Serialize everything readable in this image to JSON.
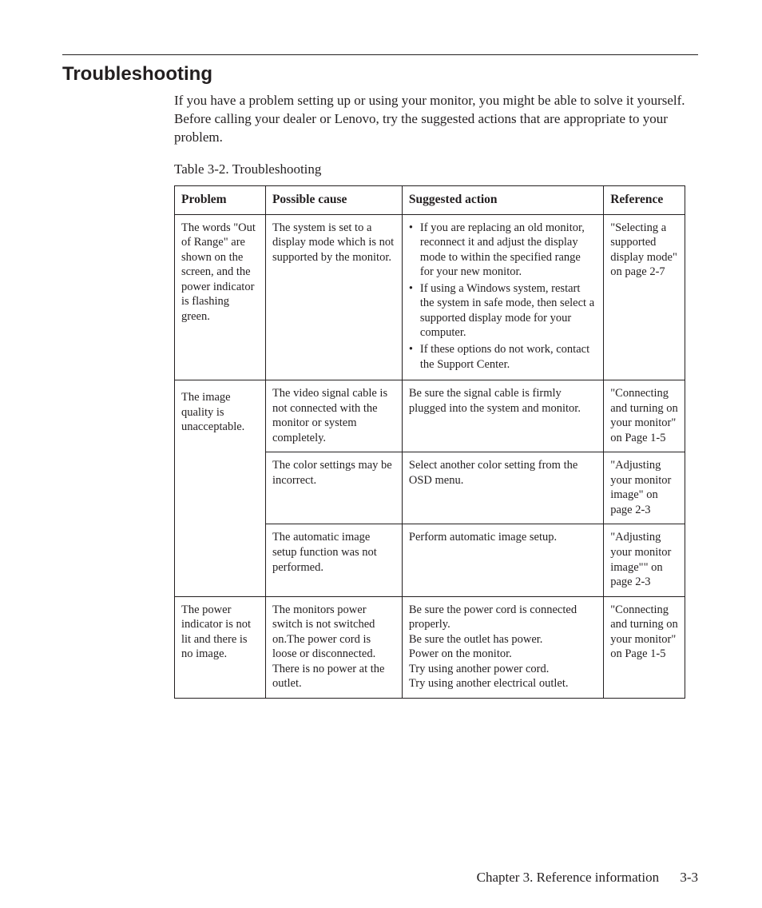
{
  "heading": "Troubleshooting",
  "intro": "If you have a problem setting up or using your monitor, you might be able to solve it yourself. Before calling your dealer or Lenovo, try the suggested actions that are appropriate to your problem.",
  "table_caption": "Table 3-2. Troubleshooting",
  "columns": {
    "problem": "Problem",
    "cause": "Possible cause",
    "action": "Suggested action",
    "reference": "Reference"
  },
  "rows": {
    "r1": {
      "problem": "The words \"Out of Range\" are shown on the screen, and the power indicator is flashing green.",
      "cause": "The system is set to a display mode which is not supported by the monitor.",
      "action_items": {
        "a1": "If you are replacing an old monitor, reconnect it and adjust the display mode to within the specified range for your new monitor.",
        "a2": "If using a Windows system, restart the system in safe mode, then select a supported display mode for your computer.",
        "a3": "If these options do not work, contact the Support Center."
      },
      "reference": "\"Selecting a supported display mode\" on page 2-7"
    },
    "r2a": {
      "problem": "The image quality is unacceptable.",
      "cause": "The video signal cable is not connected with the monitor or system completely.",
      "action": "Be sure the signal cable is firmly plugged into the system and monitor.",
      "reference": "\"Connecting and turning on your monitor\" on Page 1-5"
    },
    "r2b": {
      "cause": "The color settings may be incorrect.",
      "action": "Select another color setting from the OSD menu.",
      "reference": "\"Adjusting your monitor image\" on page 2-3"
    },
    "r2c": {
      "cause": "The automatic image setup function was not performed.",
      "action": "Perform automatic image setup.",
      "reference": "\"Adjusting your monitor image\"\" on page 2-3"
    },
    "r3": {
      "problem": "The power indicator is not lit and there is no image.",
      "cause": "The monitors power switch is not switched on.The power cord is loose or disconnected.\nThere is no power at the outlet.",
      "action": "Be sure the power cord is connected properly.\nBe sure the outlet has power.\nPower on the monitor.\nTry using another power cord.\nTry using another electrical outlet.",
      "reference": "\"Connecting and turning on your monitor\" on Page 1-5"
    }
  },
  "footer_chapter": "Chapter 3. Reference information",
  "footer_page": "3-3"
}
